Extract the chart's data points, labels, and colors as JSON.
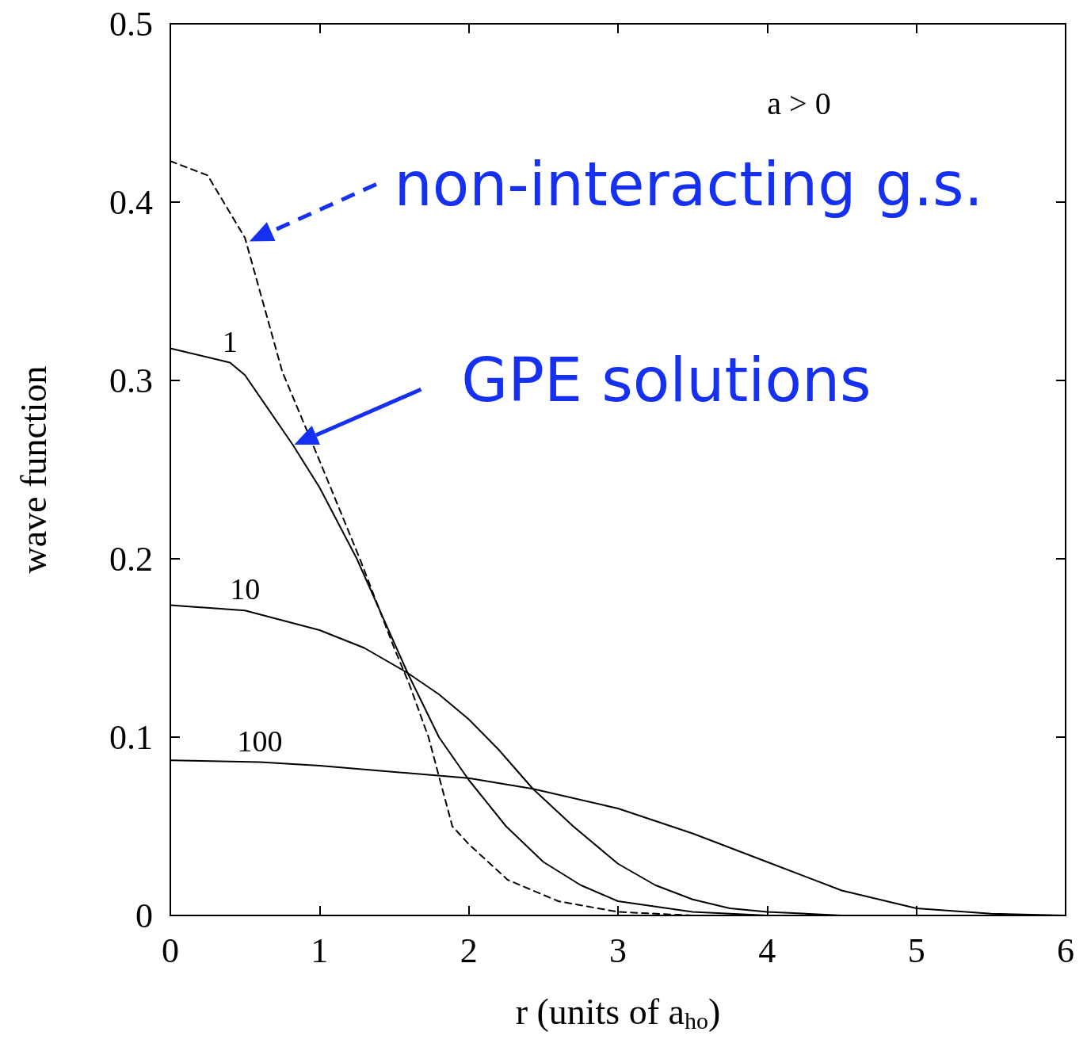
{
  "chart_data": {
    "type": "line",
    "xlabel": "r (units of a$_{ho}$)",
    "ylabel": "wave function",
    "xlim": [
      0,
      6
    ],
    "xticks": [
      0,
      1,
      2,
      3,
      4,
      5,
      6
    ],
    "ylim": [
      0,
      0.5
    ],
    "yticks": [
      0,
      0.1,
      0.2,
      0.3,
      0.4,
      0.5
    ],
    "grid": false,
    "legend": false,
    "marker": "none",
    "annotations": [
      "a > 0",
      {
        "text": "non-interacting g.s.",
        "x": 0.53,
        "y": 0.378
      },
      {
        "text": "GPE solutions",
        "x": 0.83,
        "y": 0.264
      }
    ],
    "series": [
      {
        "color": "#000000",
        "line_style": "dashed",
        "x": [
          0,
          0.25,
          0.5,
          0.75,
          1.0,
          1.27,
          1.5,
          1.6,
          1.73,
          1.89,
          2.0,
          2.26,
          2.6,
          3.0,
          3.5,
          6
        ],
        "values": [
          0.423,
          0.415,
          0.38,
          0.305,
          0.255,
          0.2,
          0.15,
          0.13,
          0.1,
          0.05,
          0.04,
          0.02,
          0.008,
          0.002,
          0,
          0
        ]
      },
      {
        "name": "1",
        "color": "#000000",
        "line_style": "solid",
        "x": [
          0,
          0.4,
          0.5,
          0.82,
          1.0,
          1.25,
          1.59,
          1.8,
          2.0,
          2.25,
          2.5,
          2.75,
          3.0,
          3.5,
          4,
          6
        ],
        "values": [
          0.318,
          0.31,
          0.303,
          0.264,
          0.24,
          0.2,
          0.136,
          0.1,
          0.076,
          0.05,
          0.03,
          0.017,
          0.008,
          0.002,
          0,
          0
        ]
      },
      {
        "name": "10",
        "color": "#000000",
        "line_style": "solid",
        "x": [
          0,
          0.5,
          1.0,
          1.3,
          1.59,
          1.8,
          2.0,
          2.2,
          2.43,
          2.7,
          3.0,
          3.25,
          3.5,
          3.75,
          4,
          4.5,
          6
        ],
        "values": [
          0.174,
          0.171,
          0.16,
          0.15,
          0.136,
          0.124,
          0.11,
          0.093,
          0.071,
          0.05,
          0.029,
          0.017,
          0.009,
          0.004,
          0.002,
          0,
          0
        ]
      },
      {
        "name": "100",
        "color": "#000000",
        "line_style": "solid",
        "x": [
          0,
          0.6,
          1,
          2,
          2.43,
          3,
          3.5,
          4,
          4.5,
          5,
          5.5,
          6
        ],
        "values": [
          0.087,
          0.086,
          0.084,
          0.077,
          0.071,
          0.06,
          0.046,
          0.03,
          0.014,
          0.004,
          0.001,
          0
        ]
      }
    ]
  }
}
